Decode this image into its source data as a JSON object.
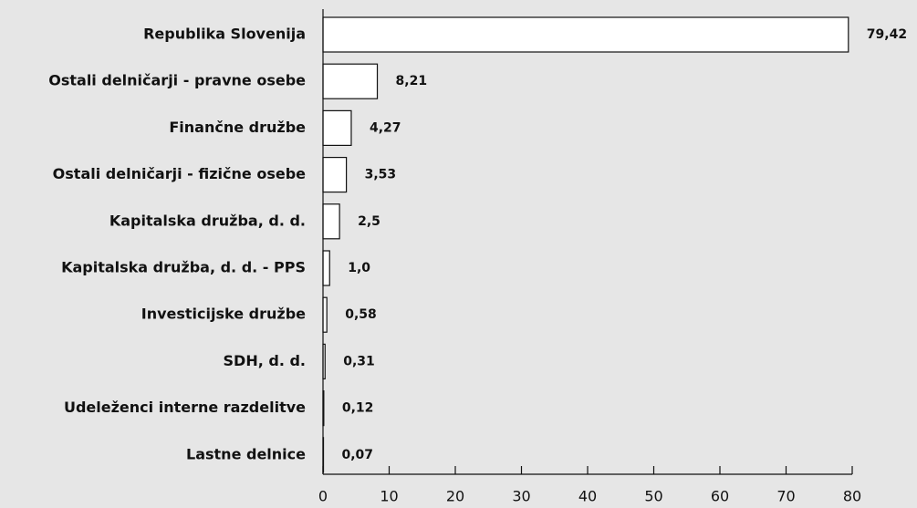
{
  "chart_data": {
    "type": "bar",
    "orientation": "horizontal",
    "categories": [
      "Republika Slovenija",
      "Ostali delničarji - pravne osebe",
      "Finančne družbe",
      "Ostali delničarji - fizične osebe",
      "Kapitalska družba, d. d.",
      "Kapitalska družba, d. d. - PPS",
      "Investicijske družbe",
      "SDH, d. d.",
      "Udeleženci interne razdelitve",
      "Lastne delnice"
    ],
    "values": [
      79.42,
      8.21,
      4.27,
      3.53,
      2.5,
      1.0,
      0.58,
      0.31,
      0.12,
      0.07
    ],
    "value_labels": [
      "79,42",
      "8,21",
      "4,27",
      "3,53",
      "2,5",
      "1,0",
      "0,58",
      "0,31",
      "0,12",
      "0,07"
    ],
    "color": "#ffffff",
    "xlim": [
      0,
      80
    ],
    "xticks": [
      0,
      10,
      20,
      30,
      40,
      50,
      60,
      70,
      80
    ],
    "grid": false
  }
}
